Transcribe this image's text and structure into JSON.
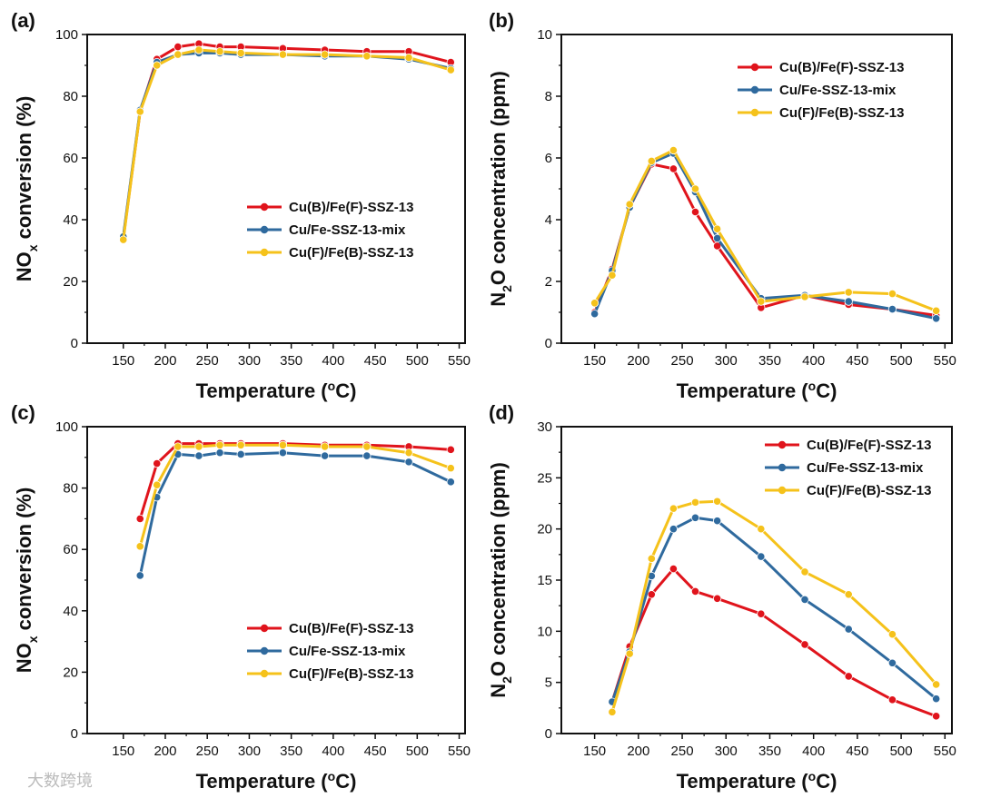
{
  "colors": {
    "red": "#e0141c",
    "blue": "#2f6a9e",
    "yellow": "#f5c21b"
  },
  "watermark": "大数跨境",
  "chart_data": [
    {
      "panel": "(a)",
      "type": "line",
      "xlabel": {
        "pre": "Temperature (",
        "sup": "o",
        "post": "C)"
      },
      "ylabel": {
        "pre": "NO",
        "sub": "x",
        "post": " conversion (%)"
      },
      "xlim": [
        107,
        557
      ],
      "ylim": [
        0,
        100
      ],
      "xticks": [
        150,
        200,
        250,
        300,
        350,
        400,
        450,
        500,
        550
      ],
      "yticks": [
        0,
        20,
        40,
        60,
        80,
        100
      ],
      "legend": "center-right",
      "x": [
        150,
        170,
        190,
        215,
        240,
        265,
        290,
        340,
        390,
        440,
        490,
        540
      ],
      "series": [
        {
          "name": "Cu(B)/Fe(F)-SSZ-13",
          "color": "red",
          "values": [
            34,
            75,
            92,
            96,
            97,
            96,
            96,
            95.5,
            95,
            94.5,
            94.5,
            91
          ]
        },
        {
          "name": "Cu/Fe-SSZ-13-mix",
          "color": "blue",
          "values": [
            34.5,
            75.5,
            91,
            93.5,
            94,
            94,
            93.5,
            93.5,
            93,
            93,
            92,
            89
          ]
        },
        {
          "name": "Cu(F)/Fe(B)-SSZ-13",
          "color": "yellow",
          "values": [
            33.5,
            75,
            90,
            93.5,
            95,
            94.5,
            94,
            93.5,
            93.5,
            93,
            92.5,
            88.5
          ]
        }
      ]
    },
    {
      "panel": "(b)",
      "type": "line",
      "xlabel": {
        "pre": "Temperature (",
        "sup": "o",
        "post": "C)"
      },
      "ylabel": {
        "pre": "N",
        "sub": "2",
        "post": "O concentration (ppm)"
      },
      "xlim": [
        112,
        558
      ],
      "ylim": [
        0,
        10
      ],
      "xticks": [
        150,
        200,
        250,
        300,
        350,
        400,
        450,
        500,
        550
      ],
      "yticks": [
        0,
        2,
        4,
        6,
        8,
        10
      ],
      "legend": "top-right",
      "x": [
        150,
        170,
        190,
        215,
        240,
        265,
        290,
        340,
        390,
        440,
        490,
        540
      ],
      "series": [
        {
          "name": "Cu(B)/Fe(F)-SSZ-13",
          "color": "red",
          "values": [
            1.0,
            2.4,
            4.4,
            5.8,
            5.65,
            4.25,
            3.15,
            1.15,
            1.55,
            1.25,
            1.1,
            0.9
          ]
        },
        {
          "name": "Cu/Fe-SSZ-13-mix",
          "color": "blue",
          "values": [
            0.95,
            2.35,
            4.4,
            5.85,
            6.15,
            4.9,
            3.4,
            1.45,
            1.55,
            1.35,
            1.1,
            0.8
          ]
        },
        {
          "name": "Cu(F)/Fe(B)-SSZ-13",
          "color": "yellow",
          "values": [
            1.3,
            2.2,
            4.5,
            5.9,
            6.25,
            5.0,
            3.7,
            1.35,
            1.5,
            1.65,
            1.6,
            1.05
          ]
        }
      ]
    },
    {
      "panel": "(c)",
      "type": "line",
      "xlabel": {
        "pre": "Temperature (",
        "sup": "o",
        "post": "C)"
      },
      "ylabel": {
        "pre": "NO",
        "sub": "x",
        "post": " conversion (%)"
      },
      "xlim": [
        107,
        557
      ],
      "ylim": [
        0,
        100
      ],
      "xticks": [
        150,
        200,
        250,
        300,
        350,
        400,
        450,
        500,
        550
      ],
      "yticks": [
        0,
        20,
        40,
        60,
        80,
        100
      ],
      "legend": "bottom-right",
      "x": [
        170,
        190,
        215,
        240,
        265,
        290,
        340,
        390,
        440,
        490,
        540
      ],
      "series": [
        {
          "name": "Cu(B)/Fe(F)-SSZ-13",
          "color": "red",
          "values": [
            70,
            88,
            94.5,
            94.5,
            94.5,
            94.5,
            94.5,
            94,
            94,
            93.5,
            92.5
          ]
        },
        {
          "name": "Cu/Fe-SSZ-13-mix",
          "color": "blue",
          "values": [
            51.5,
            77,
            91,
            90.5,
            91.5,
            91,
            91.5,
            90.5,
            90.5,
            88.5,
            82
          ]
        },
        {
          "name": "Cu(F)/Fe(B)-SSZ-13",
          "color": "yellow",
          "values": [
            61,
            81,
            93.5,
            93.5,
            94,
            94,
            94,
            93.5,
            93.5,
            91.5,
            86.5
          ]
        }
      ]
    },
    {
      "panel": "(d)",
      "type": "line",
      "xlabel": {
        "pre": "Temperature (",
        "sup": "o",
        "post": "C)"
      },
      "ylabel": {
        "pre": "N",
        "sub": "2",
        "post": "O concentration (ppm)"
      },
      "xlim": [
        112,
        558
      ],
      "ylim": [
        0,
        30
      ],
      "xticks": [
        150,
        200,
        250,
        300,
        350,
        400,
        450,
        500,
        550
      ],
      "yticks": [
        0,
        5,
        10,
        15,
        20,
        25,
        30
      ],
      "legend": "top-right",
      "x": [
        170,
        190,
        215,
        240,
        265,
        290,
        340,
        390,
        440,
        490,
        540
      ],
      "series": [
        {
          "name": "Cu(B)/Fe(F)-SSZ-13",
          "color": "red",
          "values": [
            3.1,
            8.5,
            13.6,
            16.1,
            13.9,
            13.2,
            11.7,
            8.7,
            5.6,
            3.3,
            1.7
          ]
        },
        {
          "name": "Cu/Fe-SSZ-13-mix",
          "color": "blue",
          "values": [
            3.1,
            8,
            15.4,
            20,
            21.1,
            20.8,
            17.3,
            13.1,
            10.2,
            6.9,
            3.4
          ]
        },
        {
          "name": "Cu(F)/Fe(B)-SSZ-13",
          "color": "yellow",
          "values": [
            2.1,
            7.8,
            17.1,
            22,
            22.6,
            22.7,
            20,
            15.8,
            13.6,
            9.7,
            4.8
          ]
        }
      ]
    }
  ]
}
